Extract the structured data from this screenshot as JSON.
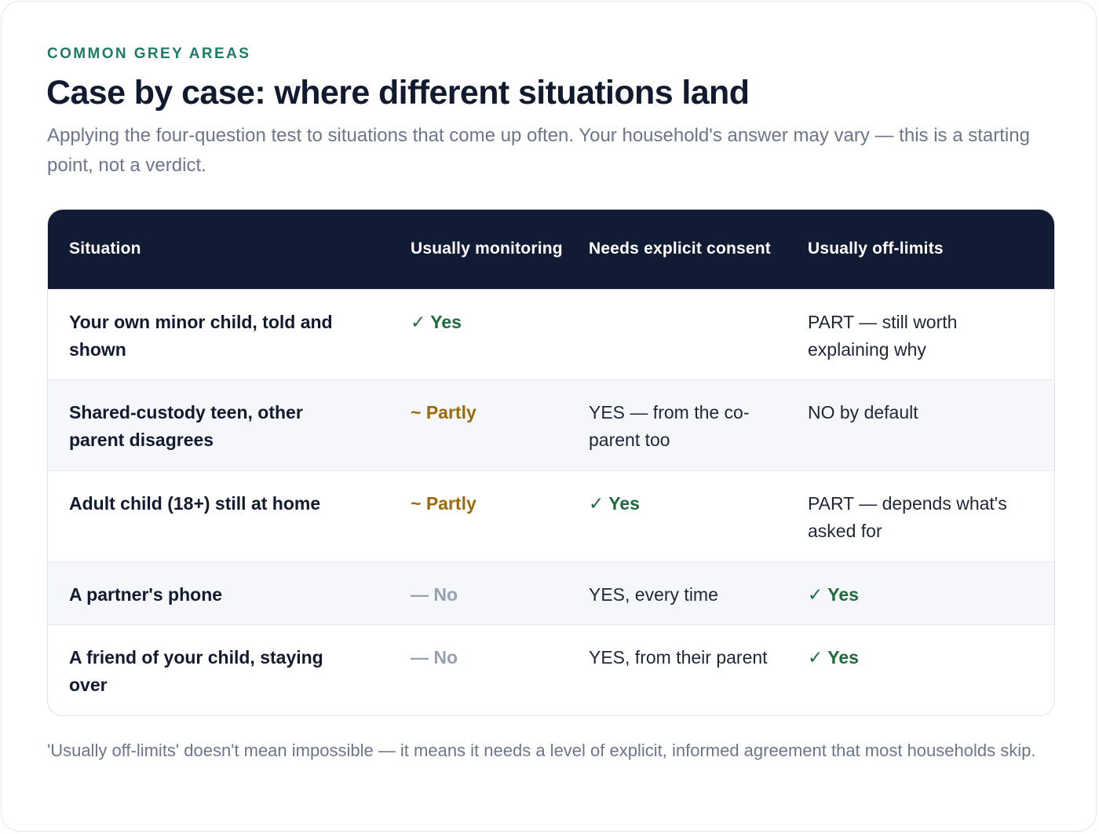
{
  "header": {
    "eyebrow": "COMMON GREY AREAS",
    "title": "Case by case: where different situations land",
    "subtitle": "Applying the four-question test to situations that come up often. Your household's answer may vary — this is a starting point, not a verdict."
  },
  "table": {
    "columns": [
      "Situation",
      "Usually monitoring",
      "Needs explicit consent",
      "Usually off-limits"
    ],
    "rows": [
      {
        "situation": "Your own minor child, told and shown",
        "monitoring": "✓ Yes",
        "consent": "",
        "off_limits": "PART — still worth explaining why"
      },
      {
        "situation": "Shared-custody teen, other parent disagrees",
        "monitoring": "~ Partly",
        "consent": "YES — from the co-parent too",
        "off_limits": "NO by default"
      },
      {
        "situation": "Adult child (18+) still at home",
        "monitoring": "~ Partly",
        "consent": "✓ Yes",
        "off_limits": "PART — depends what's asked for"
      },
      {
        "situation": "A partner's phone",
        "monitoring": "— No",
        "consent": "YES, every time",
        "off_limits": "✓ Yes"
      },
      {
        "situation": "A friend of your child, staying over",
        "monitoring": "— No",
        "consent": "YES, from their parent",
        "off_limits": "✓ Yes"
      }
    ]
  },
  "footnote": "'Usually off-limits' doesn't mean impossible — it means it needs a level of explicit, informed agreement that most households skip.",
  "colors": {
    "accent": "#1f7a68",
    "header_bg": "#111b33",
    "yes": "#1e6b3d",
    "partly": "#9a6a0c",
    "no": "#95a0b0"
  }
}
